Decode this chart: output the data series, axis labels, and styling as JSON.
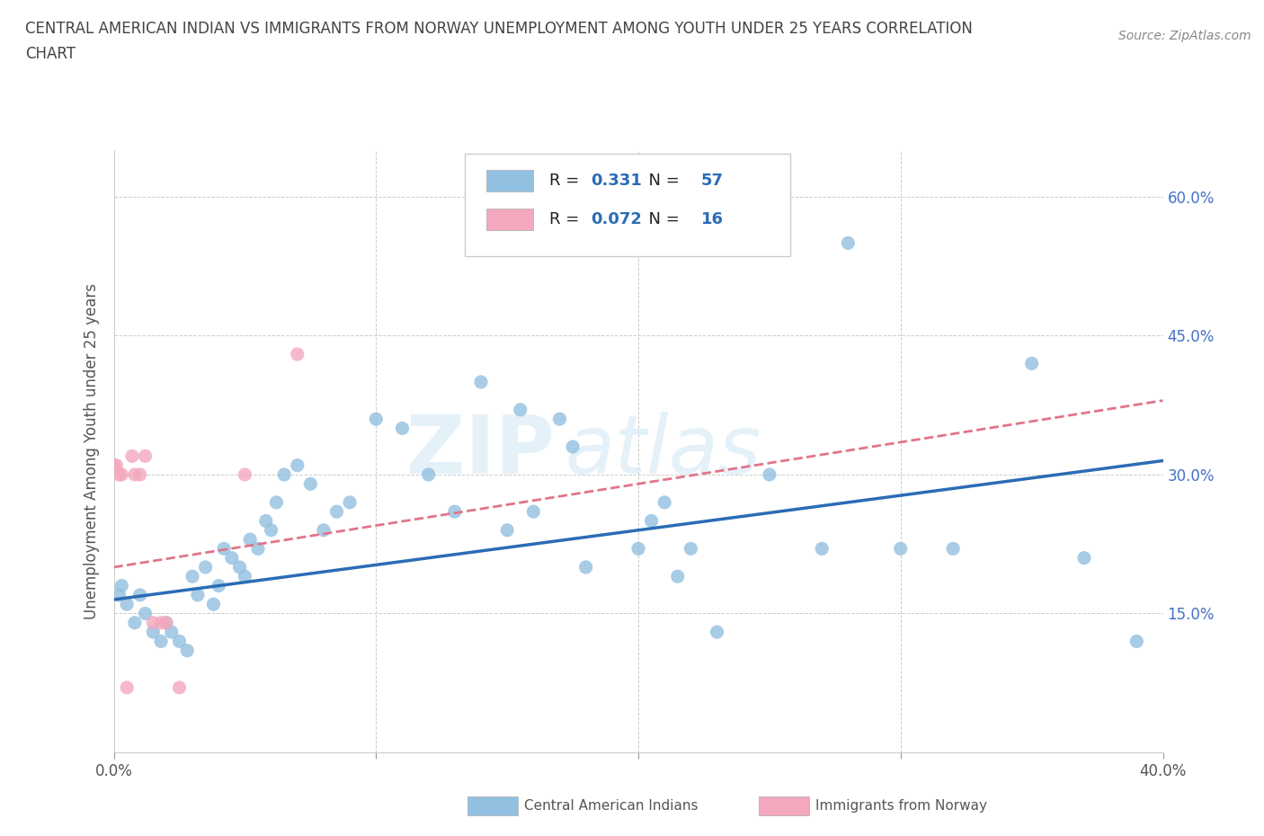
{
  "title_line1": "CENTRAL AMERICAN INDIAN VS IMMIGRANTS FROM NORWAY UNEMPLOYMENT AMONG YOUTH UNDER 25 YEARS CORRELATION",
  "title_line2": "CHART",
  "source_text": "Source: ZipAtlas.com",
  "ylabel": "Unemployment Among Youth under 25 years",
  "xlim": [
    0.0,
    0.4
  ],
  "ylim": [
    0.0,
    0.65
  ],
  "x_ticks": [
    0.0,
    0.1,
    0.2,
    0.3,
    0.4
  ],
  "x_tick_labels": [
    "0.0%",
    "",
    "",
    "",
    "40.0%"
  ],
  "y_ticks": [
    0.0,
    0.15,
    0.3,
    0.45,
    0.6
  ],
  "right_y_tick_labels": [
    "",
    "15.0%",
    "30.0%",
    "45.0%",
    "60.0%"
  ],
  "grid_color": "#cccccc",
  "background_color": "#ffffff",
  "watermark_zip": "ZIP",
  "watermark_atlas": "atlas",
  "legend_R1": "0.331",
  "legend_N1": "57",
  "legend_R2": "0.072",
  "legend_N2": "16",
  "blue_color": "#92c0e0",
  "pink_color": "#f4a8be",
  "blue_line_color": "#2b6cb5",
  "pink_line_color": "#e0758a",
  "blue_scatter_x": [
    0.002,
    0.003,
    0.005,
    0.008,
    0.01,
    0.012,
    0.015,
    0.018,
    0.02,
    0.022,
    0.025,
    0.028,
    0.03,
    0.032,
    0.035,
    0.038,
    0.04,
    0.042,
    0.045,
    0.048,
    0.05,
    0.052,
    0.055,
    0.058,
    0.06,
    0.062,
    0.065,
    0.07,
    0.075,
    0.08,
    0.085,
    0.09,
    0.1,
    0.11,
    0.12,
    0.13,
    0.14,
    0.15,
    0.155,
    0.16,
    0.17,
    0.175,
    0.18,
    0.2,
    0.205,
    0.21,
    0.215,
    0.22,
    0.23,
    0.25,
    0.27,
    0.28,
    0.3,
    0.32,
    0.35,
    0.37,
    0.39
  ],
  "blue_scatter_y": [
    0.17,
    0.18,
    0.16,
    0.14,
    0.17,
    0.15,
    0.13,
    0.12,
    0.14,
    0.13,
    0.12,
    0.11,
    0.19,
    0.17,
    0.2,
    0.16,
    0.18,
    0.22,
    0.21,
    0.2,
    0.19,
    0.23,
    0.22,
    0.25,
    0.24,
    0.27,
    0.3,
    0.31,
    0.29,
    0.24,
    0.26,
    0.27,
    0.36,
    0.35,
    0.3,
    0.26,
    0.4,
    0.24,
    0.37,
    0.26,
    0.36,
    0.33,
    0.2,
    0.22,
    0.25,
    0.27,
    0.19,
    0.22,
    0.13,
    0.3,
    0.22,
    0.55,
    0.22,
    0.22,
    0.42,
    0.21,
    0.12
  ],
  "pink_scatter_x": [
    0.0,
    0.0,
    0.001,
    0.002,
    0.003,
    0.005,
    0.007,
    0.008,
    0.01,
    0.012,
    0.015,
    0.018,
    0.02,
    0.025,
    0.05,
    0.07
  ],
  "pink_scatter_y": [
    0.31,
    0.31,
    0.31,
    0.3,
    0.3,
    0.07,
    0.32,
    0.3,
    0.3,
    0.32,
    0.14,
    0.14,
    0.14,
    0.07,
    0.3,
    0.43
  ],
  "blue_trend_x": [
    0.0,
    0.4
  ],
  "blue_trend_y": [
    0.165,
    0.315
  ],
  "pink_trend_x": [
    0.0,
    0.4
  ],
  "pink_trend_y": [
    0.2,
    0.38
  ]
}
